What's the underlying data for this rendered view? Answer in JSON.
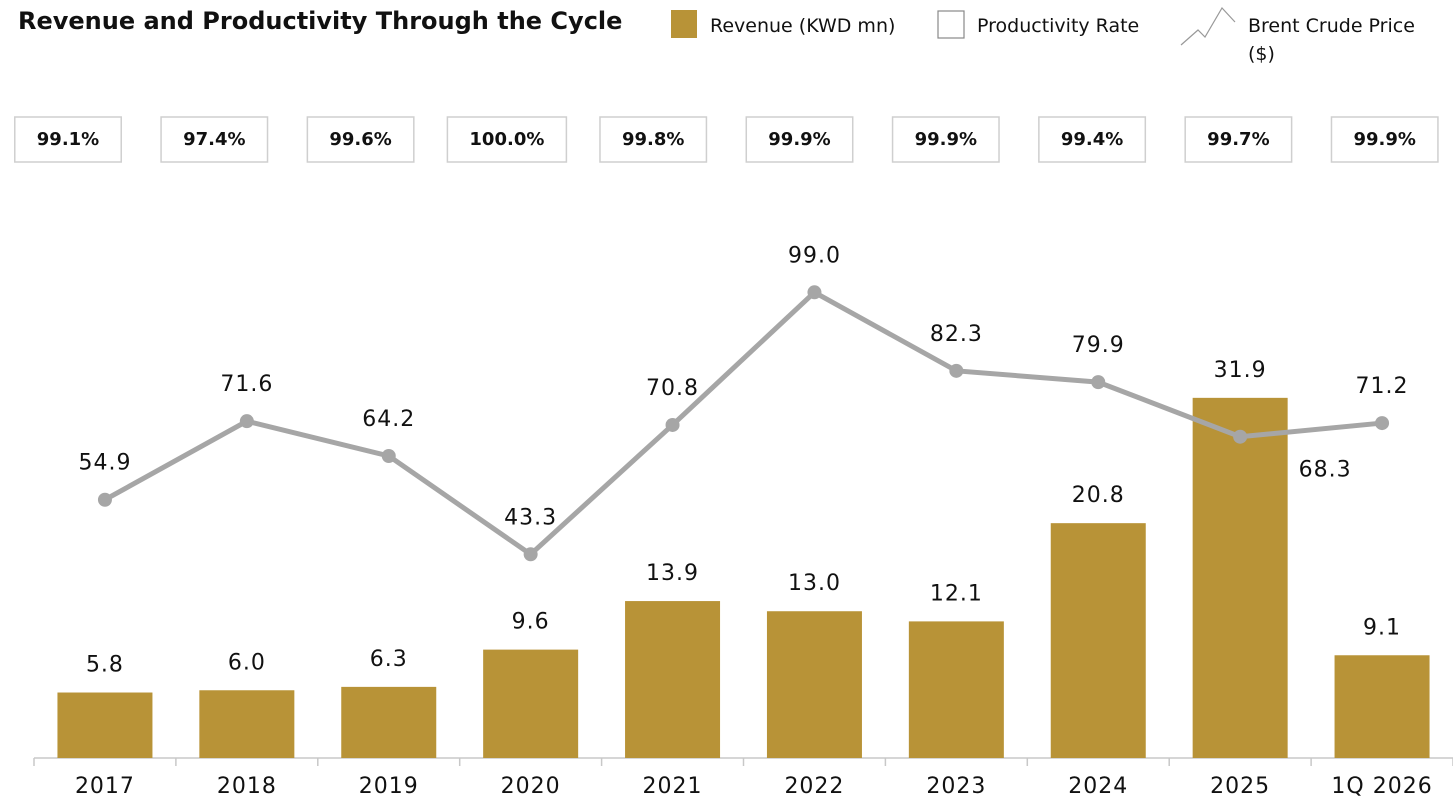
{
  "chart_data": {
    "type": "bar_line",
    "title": "Revenue and Productivity Through the Cycle",
    "categories": [
      "2017",
      "2018",
      "2019",
      "2020",
      "2021",
      "2022",
      "2023",
      "2024",
      "2025",
      "1Q 2026"
    ],
    "series": [
      {
        "name": "Revenue (KWD mn)",
        "type": "bar",
        "color": "#b89337",
        "axis": "y",
        "values": [
          5.8,
          6.0,
          6.3,
          9.6,
          13.9,
          13.0,
          12.1,
          20.8,
          31.9,
          9.1
        ],
        "value_labels": [
          "5.8",
          "6.0",
          "6.3",
          "9.6",
          "13.9",
          "13.0",
          "12.1",
          "20.8",
          "31.9",
          "9.1"
        ]
      },
      {
        "name": "Productivity Rate",
        "type": "box",
        "color": "#ffffff",
        "values": [
          99.1,
          97.4,
          99.6,
          100.0,
          99.8,
          99.9,
          99.9,
          99.4,
          99.7,
          99.9
        ],
        "value_labels": [
          "99.1%",
          "97.4%",
          "99.6%",
          "100.0%",
          "99.8%",
          "99.9%",
          "99.9%",
          "99.4%",
          "99.7%",
          "99.9%"
        ]
      },
      {
        "name": "Brent Crude Price ($)",
        "type": "line",
        "color": "#a6a6a6",
        "axis": "y2",
        "values": [
          54.9,
          71.6,
          64.2,
          43.3,
          70.8,
          99.0,
          82.3,
          79.9,
          68.3,
          71.2
        ],
        "value_labels": [
          "54.9",
          "71.6",
          "64.2",
          "43.3",
          "70.8",
          "99.0",
          "82.3",
          "79.9",
          "68.3",
          "71.2"
        ]
      }
    ],
    "ylim": [
      0,
      50
    ],
    "y2lim": [
      0,
      120
    ],
    "grid": false
  }
}
